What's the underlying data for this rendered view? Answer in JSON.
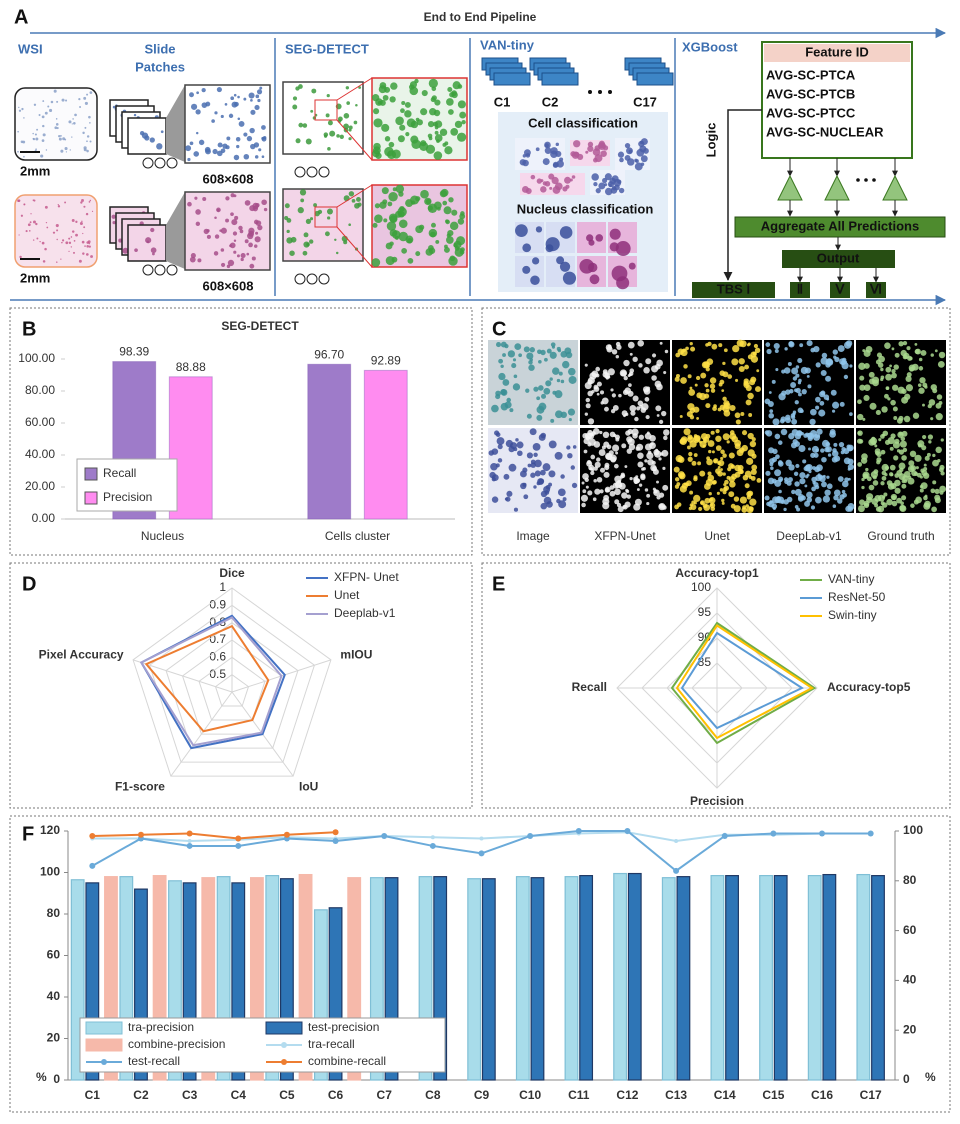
{
  "pipeline": {
    "label": "A",
    "title": "End to End Pipeline",
    "wsi": {
      "title": "WSI",
      "scale": [
        "2mm",
        "2mm"
      ]
    },
    "patches": {
      "title": [
        "Slide",
        "Patches"
      ],
      "size": [
        "608×608",
        "608×608"
      ]
    },
    "seg_detect": {
      "title": "SEG-DETECT"
    },
    "van_tiny": {
      "title": "VAN-tiny",
      "classes": [
        "C1",
        "C2",
        "C17"
      ],
      "cell": "Cell classification",
      "nucleus": "Nucleus classification"
    },
    "xgboost": {
      "title": "XGBoost",
      "feature_header": "Feature ID",
      "features": [
        "AVG-SC-PTCA",
        "AVG-SC-PTCB",
        "AVG-SC-PTCC",
        "AVG-SC-NUCLEAR"
      ],
      "logic": "Logic",
      "aggregate": "Aggregate All Predictions",
      "output": "Output",
      "classes": [
        "TBS Ⅰ",
        "Ⅱ",
        "Ⅴ",
        "Ⅵ"
      ]
    }
  },
  "panel_c": {
    "label": "C",
    "columns": [
      "Image",
      "XFPN-Unet",
      "Unet",
      "DeepLab-v1",
      "Ground truth"
    ]
  },
  "chart_data": [
    {
      "panel": "B",
      "type": "bar",
      "title": "SEG-DETECT",
      "categories": [
        "Nucleus",
        "Cells cluster"
      ],
      "series": [
        {
          "name": "Recall",
          "color": "#9e7bc9",
          "values": [
            98.39,
            96.7
          ],
          "value_labels": [
            "98.39",
            "96.70"
          ]
        },
        {
          "name": "Precision",
          "color": "#ff8cf0",
          "values": [
            88.88,
            92.89
          ],
          "value_labels": [
            "88.88",
            "92.89"
          ]
        }
      ],
      "ylim": [
        0,
        100
      ],
      "yticks": [
        {
          "value": 0,
          "label": "0.00"
        },
        {
          "value": 20,
          "label": "20.00"
        },
        {
          "value": 40,
          "label": "40.00"
        },
        {
          "value": 60,
          "label": "60.00"
        },
        {
          "value": 80,
          "label": "80.00"
        },
        {
          "value": 100,
          "label": "100.00"
        }
      ],
      "legend": "lower left",
      "grid": false
    },
    {
      "panel": "D",
      "type": "radar",
      "axes": [
        "Dice",
        "mIOU",
        "IoU",
        "F1-score",
        "Pixel Accuracy"
      ],
      "rlim": [
        0.4,
        1
      ],
      "rticks": [
        0.5,
        0.6,
        0.7,
        0.8,
        0.9,
        1
      ],
      "series": [
        {
          "name": "XFPN- Unet",
          "color": "#4472c4",
          "values": [
            0.84,
            0.72,
            0.7,
            0.8,
            0.95
          ]
        },
        {
          "name": "Unet",
          "color": "#ed7d31",
          "values": [
            0.78,
            0.62,
            0.6,
            0.68,
            0.92
          ]
        },
        {
          "name": "Deeplab-v1",
          "color": "#a5a0d0",
          "values": [
            0.83,
            0.7,
            0.69,
            0.78,
            0.95
          ]
        }
      ],
      "legend": "upper right"
    },
    {
      "panel": "E",
      "type": "radar",
      "axes": [
        "Accuracy-top1",
        "Accuracy-top5",
        "Precision",
        "Recall"
      ],
      "rlim": [
        80,
        100
      ],
      "rticks": [
        85,
        90,
        95,
        100
      ],
      "series": [
        {
          "name": "VAN-tiny",
          "color": "#70ad47",
          "values": [
            93,
            99.5,
            91,
            89
          ]
        },
        {
          "name": "ResNet-50",
          "color": "#5b9bd5",
          "values": [
            91,
            97,
            88,
            87
          ]
        },
        {
          "name": "Swin-tiny",
          "color": "#ffc000",
          "values": [
            92.5,
            99,
            90,
            88
          ]
        }
      ],
      "legend": "upper right"
    },
    {
      "panel": "F",
      "type": "combo",
      "categories": [
        "C1",
        "C2",
        "C3",
        "C4",
        "C5",
        "C6",
        "C7",
        "C8",
        "C9",
        "C10",
        "C11",
        "C12",
        "C13",
        "C14",
        "C15",
        "C16",
        "C17"
      ],
      "series": [
        {
          "name": "tra-precision",
          "type": "bar",
          "color": "#a8dcea",
          "edgecolor": "#7fbfd6",
          "values": [
            96.5,
            98,
            96,
            98,
            98.5,
            82,
            97.5,
            98,
            97,
            98,
            98,
            99.5,
            97.5,
            98.5,
            98.5,
            98.5,
            99
          ]
        },
        {
          "name": "test-precision",
          "type": "bar",
          "color": "#2e75b6",
          "edgecolor": "#1f3864",
          "values": [
            95,
            92,
            95,
            95,
            97,
            83,
            97.5,
            98,
            97,
            97.5,
            98.5,
            99.5,
            98,
            98.5,
            98.5,
            99,
            98.5
          ]
        },
        {
          "name": "combine-precision",
          "type": "bar",
          "color": "#f6b9aa",
          "edgecolor": "#f6b9aa",
          "values": [
            98,
            98.5,
            97.5,
            97.5,
            99,
            97.5,
            null,
            null,
            null,
            null,
            null,
            null,
            null,
            null,
            null,
            null,
            null
          ]
        },
        {
          "name": "tra-recall",
          "type": "line",
          "axis": "y2",
          "color": "#b4dcef",
          "values": [
            97,
            97,
            96,
            96.5,
            97.5,
            97,
            98,
            97.5,
            97,
            98,
            99,
            99.5,
            96,
            98.5,
            98.5,
            99,
            99
          ]
        },
        {
          "name": "test-recall",
          "type": "line",
          "axis": "y2",
          "color": "#6aaad9",
          "values": [
            86,
            97,
            94,
            94,
            97,
            96,
            98,
            94,
            91,
            98,
            100,
            100,
            84,
            98,
            99,
            99,
            99
          ]
        },
        {
          "name": "combine-recall",
          "type": "line",
          "axis": "y2",
          "color": "#ed7d31",
          "values": [
            98,
            98.5,
            99,
            97,
            98.5,
            99.5,
            null,
            null,
            null,
            null,
            null,
            null,
            null,
            null,
            null,
            null,
            null
          ]
        }
      ],
      "ylim": [
        0,
        120
      ],
      "yticks": [
        0,
        20,
        40,
        60,
        80,
        100,
        120
      ],
      "y2lim": [
        0,
        100
      ],
      "y2ticks": [
        0,
        20,
        40,
        60,
        80,
        100
      ],
      "ylabel": "%",
      "y2label": "%",
      "legend": "lower left"
    }
  ]
}
